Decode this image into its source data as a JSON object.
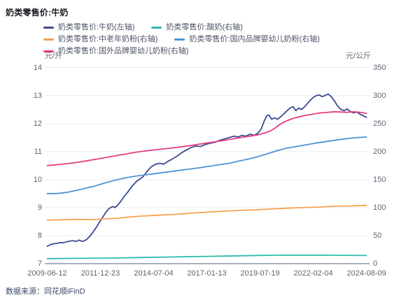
{
  "source": "数据来源：同花顺iFinD",
  "chart_data": {
    "type": "line",
    "title": "奶类零售价:牛奶",
    "grid": true,
    "legend_position": "top",
    "left_axis": {
      "label": "元/升",
      "min": 7,
      "max": 14,
      "ticks": [
        14,
        13,
        12,
        11,
        10,
        9,
        8,
        7
      ]
    },
    "right_axis": {
      "label": "元/公斤",
      "min": 0,
      "max": 350,
      "ticks": [
        350,
        300,
        250,
        200,
        150,
        100,
        50,
        0
      ]
    },
    "x_axis": {
      "tick_labels": [
        "2009-06-12",
        "2011-12-23",
        "2014-07-04",
        "2017-01-13",
        "2019-07-19",
        "2022-02-04",
        "2024-08-09"
      ]
    },
    "series": [
      {
        "name": "奶类零售价:牛奶(左轴)",
        "axis": "left",
        "unit": "元/升",
        "color": "#3c4b8f",
        "points": [
          [
            0.0,
            7.62
          ],
          [
            0.01,
            7.68
          ],
          [
            0.02,
            7.71
          ],
          [
            0.03,
            7.72
          ],
          [
            0.04,
            7.75
          ],
          [
            0.05,
            7.74
          ],
          [
            0.06,
            7.78
          ],
          [
            0.07,
            7.8
          ],
          [
            0.08,
            7.82
          ],
          [
            0.09,
            7.79
          ],
          [
            0.1,
            7.84
          ],
          [
            0.108,
            7.8
          ],
          [
            0.115,
            7.8
          ],
          [
            0.125,
            7.88
          ],
          [
            0.135,
            8.0
          ],
          [
            0.145,
            8.15
          ],
          [
            0.155,
            8.32
          ],
          [
            0.165,
            8.5
          ],
          [
            0.175,
            8.68
          ],
          [
            0.185,
            8.86
          ],
          [
            0.195,
            8.98
          ],
          [
            0.205,
            9.04
          ],
          [
            0.212,
            9.0
          ],
          [
            0.22,
            9.08
          ],
          [
            0.23,
            9.22
          ],
          [
            0.24,
            9.38
          ],
          [
            0.252,
            9.55
          ],
          [
            0.265,
            9.75
          ],
          [
            0.278,
            9.92
          ],
          [
            0.29,
            10.02
          ],
          [
            0.3,
            10.1
          ],
          [
            0.312,
            10.28
          ],
          [
            0.325,
            10.45
          ],
          [
            0.34,
            10.55
          ],
          [
            0.352,
            10.58
          ],
          [
            0.365,
            10.55
          ],
          [
            0.378,
            10.65
          ],
          [
            0.39,
            10.72
          ],
          [
            0.405,
            10.82
          ],
          [
            0.42,
            10.95
          ],
          [
            0.435,
            11.05
          ],
          [
            0.45,
            11.14
          ],
          [
            0.465,
            11.2
          ],
          [
            0.48,
            11.18
          ],
          [
            0.495,
            11.25
          ],
          [
            0.51,
            11.3
          ],
          [
            0.525,
            11.33
          ],
          [
            0.54,
            11.4
          ],
          [
            0.555,
            11.45
          ],
          [
            0.57,
            11.5
          ],
          [
            0.585,
            11.55
          ],
          [
            0.598,
            11.52
          ],
          [
            0.61,
            11.58
          ],
          [
            0.622,
            11.55
          ],
          [
            0.635,
            11.62
          ],
          [
            0.648,
            11.58
          ],
          [
            0.66,
            11.66
          ],
          [
            0.67,
            11.8
          ],
          [
            0.68,
            12.1
          ],
          [
            0.688,
            12.28
          ],
          [
            0.695,
            12.3
          ],
          [
            0.703,
            12.15
          ],
          [
            0.712,
            12.2
          ],
          [
            0.722,
            12.15
          ],
          [
            0.735,
            12.28
          ],
          [
            0.748,
            12.42
          ],
          [
            0.76,
            12.55
          ],
          [
            0.77,
            12.6
          ],
          [
            0.779,
            12.46
          ],
          [
            0.788,
            12.55
          ],
          [
            0.797,
            12.5
          ],
          [
            0.808,
            12.62
          ],
          [
            0.82,
            12.78
          ],
          [
            0.832,
            12.92
          ],
          [
            0.843,
            13.0
          ],
          [
            0.853,
            13.02
          ],
          [
            0.861,
            12.96
          ],
          [
            0.87,
            13.0
          ],
          [
            0.88,
            13.05
          ],
          [
            0.89,
            12.96
          ],
          [
            0.9,
            12.8
          ],
          [
            0.91,
            12.62
          ],
          [
            0.92,
            12.5
          ],
          [
            0.93,
            12.46
          ],
          [
            0.94,
            12.52
          ],
          [
            0.95,
            12.42
          ],
          [
            0.96,
            12.38
          ],
          [
            0.97,
            12.41
          ],
          [
            0.98,
            12.33
          ],
          [
            0.99,
            12.28
          ],
          [
            1.0,
            12.22
          ]
        ]
      },
      {
        "name": "奶类零售价:酸奶(右轴)",
        "axis": "right",
        "unit": "元/公斤",
        "color": "#2dbcab",
        "points": [
          [
            0.0,
            9
          ],
          [
            0.1,
            9.5
          ],
          [
            0.2,
            10
          ],
          [
            0.3,
            11
          ],
          [
            0.4,
            12
          ],
          [
            0.5,
            13
          ],
          [
            0.6,
            14
          ],
          [
            0.7,
            15
          ],
          [
            0.8,
            15.2
          ],
          [
            0.9,
            15
          ],
          [
            1.0,
            14.5
          ]
        ]
      },
      {
        "name": "奶类零售价:中老年奶粉(右轴)",
        "axis": "right",
        "unit": "元/公斤",
        "color": "#f7a14e",
        "points": [
          [
            0.0,
            77.5
          ],
          [
            0.05,
            78.5
          ],
          [
            0.1,
            79
          ],
          [
            0.14,
            78.5
          ],
          [
            0.18,
            80
          ],
          [
            0.22,
            81
          ],
          [
            0.26,
            83.5
          ],
          [
            0.3,
            85
          ],
          [
            0.35,
            86.5
          ],
          [
            0.4,
            88
          ],
          [
            0.45,
            90
          ],
          [
            0.5,
            92
          ],
          [
            0.55,
            93.5
          ],
          [
            0.6,
            95
          ],
          [
            0.65,
            96
          ],
          [
            0.7,
            97.5
          ],
          [
            0.75,
            99
          ],
          [
            0.8,
            100
          ],
          [
            0.85,
            101
          ],
          [
            0.9,
            102.5
          ],
          [
            0.95,
            103
          ],
          [
            1.0,
            104
          ]
        ]
      },
      {
        "name": "奶类零售价:国内品牌婴幼儿奶粉(右轴)",
        "axis": "right",
        "unit": "元/公斤",
        "color": "#4e94d8",
        "points": [
          [
            0.0,
            125
          ],
          [
            0.03,
            125
          ],
          [
            0.06,
            127
          ],
          [
            0.09,
            130.5
          ],
          [
            0.12,
            134.5
          ],
          [
            0.15,
            138.5
          ],
          [
            0.18,
            144
          ],
          [
            0.21,
            148.5
          ],
          [
            0.24,
            152.5
          ],
          [
            0.27,
            155.5
          ],
          [
            0.3,
            158
          ],
          [
            0.33,
            160
          ],
          [
            0.36,
            162.5
          ],
          [
            0.39,
            164.5
          ],
          [
            0.42,
            167
          ],
          [
            0.45,
            169
          ],
          [
            0.48,
            171.5
          ],
          [
            0.51,
            174
          ],
          [
            0.54,
            176.5
          ],
          [
            0.57,
            179
          ],
          [
            0.6,
            183
          ],
          [
            0.63,
            186.5
          ],
          [
            0.66,
            191
          ],
          [
            0.69,
            196
          ],
          [
            0.72,
            201.5
          ],
          [
            0.75,
            206
          ],
          [
            0.78,
            209
          ],
          [
            0.81,
            212
          ],
          [
            0.84,
            215
          ],
          [
            0.87,
            217.5
          ],
          [
            0.9,
            220
          ],
          [
            0.93,
            222.5
          ],
          [
            0.96,
            224.5
          ],
          [
            1.0,
            226
          ]
        ]
      },
      {
        "name": "奶类零售价:国外品牌婴幼儿奶粉(右轴)",
        "axis": "right",
        "unit": "元/公斤",
        "color": "#e63c82",
        "points": [
          [
            0.0,
            175
          ],
          [
            0.04,
            177
          ],
          [
            0.08,
            179.5
          ],
          [
            0.12,
            183
          ],
          [
            0.16,
            187
          ],
          [
            0.2,
            191
          ],
          [
            0.24,
            195
          ],
          [
            0.28,
            199
          ],
          [
            0.32,
            202
          ],
          [
            0.36,
            204.5
          ],
          [
            0.4,
            207
          ],
          [
            0.44,
            210
          ],
          [
            0.48,
            213.5
          ],
          [
            0.52,
            217
          ],
          [
            0.56,
            220.5
          ],
          [
            0.6,
            224.5
          ],
          [
            0.64,
            228
          ],
          [
            0.66,
            230
          ],
          [
            0.68,
            233
          ],
          [
            0.7,
            237
          ],
          [
            0.715,
            242.5
          ],
          [
            0.73,
            249
          ],
          [
            0.745,
            253.5
          ],
          [
            0.76,
            257
          ],
          [
            0.775,
            260
          ],
          [
            0.79,
            262
          ],
          [
            0.805,
            264
          ],
          [
            0.82,
            265.5
          ],
          [
            0.835,
            267
          ],
          [
            0.85,
            268.5
          ],
          [
            0.865,
            269.5
          ],
          [
            0.88,
            270
          ],
          [
            0.9,
            271
          ],
          [
            0.92,
            270.5
          ],
          [
            0.94,
            270
          ],
          [
            0.955,
            271
          ],
          [
            0.97,
            270.5
          ],
          [
            0.985,
            269.5
          ],
          [
            1.0,
            268
          ]
        ]
      }
    ]
  }
}
